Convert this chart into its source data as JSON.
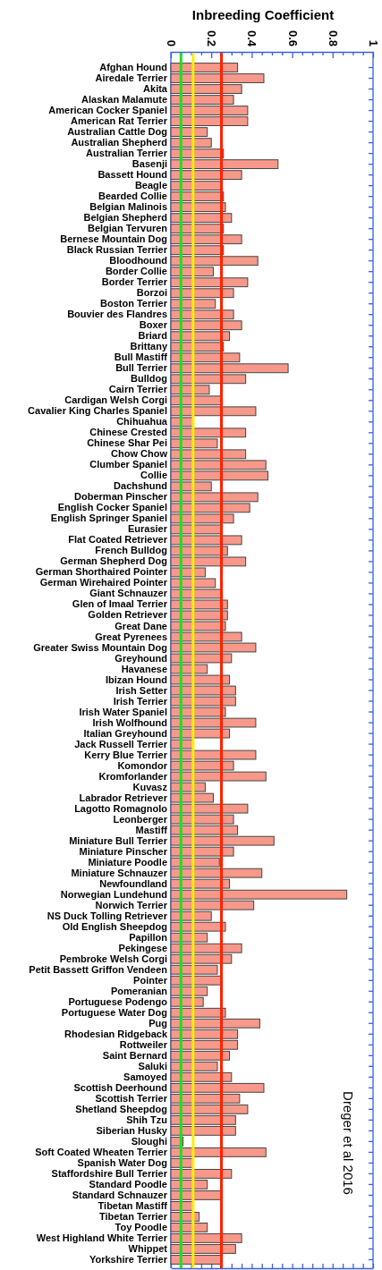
{
  "chart_data": {
    "type": "bar",
    "orientation": "horizontal",
    "xlabel": "Inbreeding Coefficient",
    "categories": [
      "Afghan Hound",
      "Airedale Terrier",
      "Akita",
      "Alaskan Malamute",
      "American Cocker Spaniel",
      "American Rat Terrier",
      "Australian Cattle Dog",
      "Australian Shepherd",
      "Australian Terrier",
      "Basenji",
      "Bassett Hound",
      "Beagle",
      "Bearded Collie",
      "Belgian Malinois",
      "Belgian Shepherd",
      "Belgian Tervuren",
      "Bernese Mountain Dog",
      "Black Russian Terrier",
      "Bloodhound",
      "Border Collie",
      "Border Terrier",
      "Borzoi",
      "Boston Terrier",
      "Bouvier des Flandres",
      "Boxer",
      "Briard",
      "Brittany",
      "Bull Mastiff",
      "Bull Terrier",
      "Bulldog",
      "Cairn Terrier",
      "Cardigan Welsh Corgi",
      "Cavalier King Charles Spaniel",
      "Chihuahua",
      "Chinese Crested",
      "Chinese Shar Pei",
      "Chow Chow",
      "Clumber Spaniel",
      "Collie",
      "Dachshund",
      "Doberman Pinscher",
      "English Cocker Spaniel",
      "English Springer Spaniel",
      "Eurasier",
      "Flat Coated Retriever",
      "French Bulldog",
      "German Shepherd Dog",
      "German Shorthaired Pointer",
      "German Wirehaired Pointer",
      "Giant Schnauzer",
      "Glen of Imaal Terrier",
      "Golden Retriever",
      "Great Dane",
      "Great Pyrenees",
      "Greater Swiss Mountain Dog",
      "Greyhound",
      "Havanese",
      "Ibizan Hound",
      "Irish Setter",
      "Irish Terrier",
      "Irish Water Spaniel",
      "Irish Wolfhound",
      "Italian Greyhound",
      "Jack Russell Terrier",
      "Kerry Blue Terrier",
      "Komondor",
      "Kromforlander",
      "Kuvasz",
      "Labrador Retriever",
      "Lagotto Romagnolo",
      "Leonberger",
      "Mastiff",
      "Miniature Bull Terrier",
      "Miniature Pinscher",
      "Miniature Poodle",
      "Miniature Schnauzer",
      "Newfoundland",
      "Norwegian Lundehund",
      "Norwich Terrier",
      "NS Duck Tolling Retriever",
      "Old English Sheepdog",
      "Papillon",
      "Pekingese",
      "Pembroke Welsh Corgi",
      "Petit Bassett Griffon Vendeen",
      "Pointer",
      "Pomeranian",
      "Portuguese Podengo",
      "Portuguese Water Dog",
      "Pug",
      "Rhodesian Ridgeback",
      "Rottweiler",
      "Saint Bernard",
      "Saluki",
      "Samoyed",
      "Scottish Deerhound",
      "Scottish Terrier",
      "Shetland Sheepdog",
      "Shih Tzu",
      "Siberian Husky",
      "Sloughi",
      "Soft Coated Wheaten Terrier",
      "Spanish Water Dog",
      "Staffordshire Bull Terrier",
      "Standard Poodle",
      "Standard Schnauzer",
      "Tibetan Mastiff",
      "Tibetan Terrier",
      "Toy Poodle",
      "West Highland White Terrier",
      "Whippet",
      "Yorkshire Terrier"
    ],
    "values": [
      0.33,
      0.46,
      0.35,
      0.31,
      0.38,
      0.38,
      0.18,
      0.2,
      0.26,
      0.53,
      0.35,
      0.25,
      0.26,
      0.27,
      0.3,
      0.26,
      0.35,
      0.26,
      0.43,
      0.21,
      0.38,
      0.31,
      0.22,
      0.31,
      0.35,
      0.29,
      0.26,
      0.34,
      0.58,
      0.37,
      0.19,
      0.25,
      0.42,
      0.11,
      0.37,
      0.23,
      0.37,
      0.47,
      0.48,
      0.2,
      0.43,
      0.39,
      0.31,
      0.25,
      0.35,
      0.28,
      0.37,
      0.17,
      0.22,
      0.25,
      0.28,
      0.28,
      0.27,
      0.35,
      0.42,
      0.3,
      0.18,
      0.29,
      0.32,
      0.32,
      0.27,
      0.42,
      0.29,
      0.11,
      0.42,
      0.31,
      0.47,
      0.17,
      0.21,
      0.38,
      0.31,
      0.33,
      0.51,
      0.31,
      0.24,
      0.45,
      0.29,
      0.87,
      0.41,
      0.2,
      0.27,
      0.18,
      0.35,
      0.3,
      0.23,
      0.25,
      0.18,
      0.16,
      0.27,
      0.44,
      0.33,
      0.33,
      0.29,
      0.23,
      0.3,
      0.46,
      0.34,
      0.38,
      0.32,
      0.32,
      0.06,
      0.47,
      0.11,
      0.3,
      0.18,
      0.25,
      0.11,
      0.14,
      0.18,
      0.35,
      0.32,
      0.25
    ],
    "color": "#f7998a",
    "xlim": [
      0,
      1
    ],
    "xticks": [
      0,
      {
        "value": 0.05,
        "label": null
      },
      {
        "value": 0.1,
        "label": null
      },
      {
        "value": 0.15,
        "label": null
      },
      0.2,
      {
        "value": 0.25,
        "label": null
      },
      {
        "value": 0.3,
        "label": null
      },
      {
        "value": 0.35,
        "label": null
      },
      0.4,
      {
        "value": 0.45,
        "label": null
      },
      {
        "value": 0.5,
        "label": null
      },
      {
        "value": 0.55,
        "label": null
      },
      0.6,
      {
        "value": 0.65,
        "label": null
      },
      {
        "value": 0.7,
        "label": null
      },
      {
        "value": 0.75,
        "label": null
      },
      0.8,
      {
        "value": 0.85,
        "label": null
      },
      {
        "value": 0.9,
        "label": null
      },
      {
        "value": 0.95,
        "label": null
      },
      1
    ],
    "ref_lines": [
      {
        "axis": "x",
        "value": 0.05,
        "color": "#22dd22"
      },
      {
        "axis": "x",
        "value": 0.11,
        "color": "#ffee00"
      },
      {
        "axis": "x",
        "value": 0.25,
        "color": "#ff2200"
      }
    ],
    "annotations": [
      "Dreger et al 2016"
    ]
  }
}
